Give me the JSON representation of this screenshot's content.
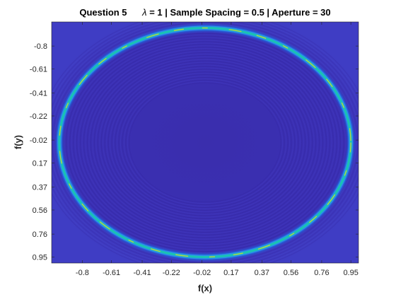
{
  "chart_data": {
    "type": "heatmap",
    "title": {
      "question": "Question 5",
      "lambda_symbol": "λ",
      "lambda_text": " = 1 | Sample Spacing = 0.5 | Aperture = 30"
    },
    "xlabel": "f(x)",
    "ylabel": "f(y)",
    "xlim": [
      -1,
      1
    ],
    "ylim": [
      -1,
      1
    ],
    "y_direction": "reversed",
    "x_ticks": [
      "-0.8",
      "-0.61",
      "-0.41",
      "-0.22",
      "-0.02",
      "0.17",
      "0.37",
      "0.56",
      "0.76",
      "0.95"
    ],
    "y_ticks": [
      "-0.8",
      "-0.61",
      "-0.41",
      "-0.22",
      "-0.02",
      "0.17",
      "0.37",
      "0.56",
      "0.76",
      "0.95"
    ],
    "tick_values": [
      -0.8,
      -0.61,
      -0.41,
      -0.22,
      -0.02,
      0.17,
      0.37,
      0.56,
      0.76,
      0.95
    ],
    "colormap": "parula",
    "background_color": "#3b2fb0",
    "ring_colors": [
      "#2b8fe8",
      "#19c3b3",
      "#c8d43e"
    ],
    "ring": {
      "center": [
        0,
        0
      ],
      "radius": 0.95
    },
    "grid": false,
    "legend": "none"
  }
}
